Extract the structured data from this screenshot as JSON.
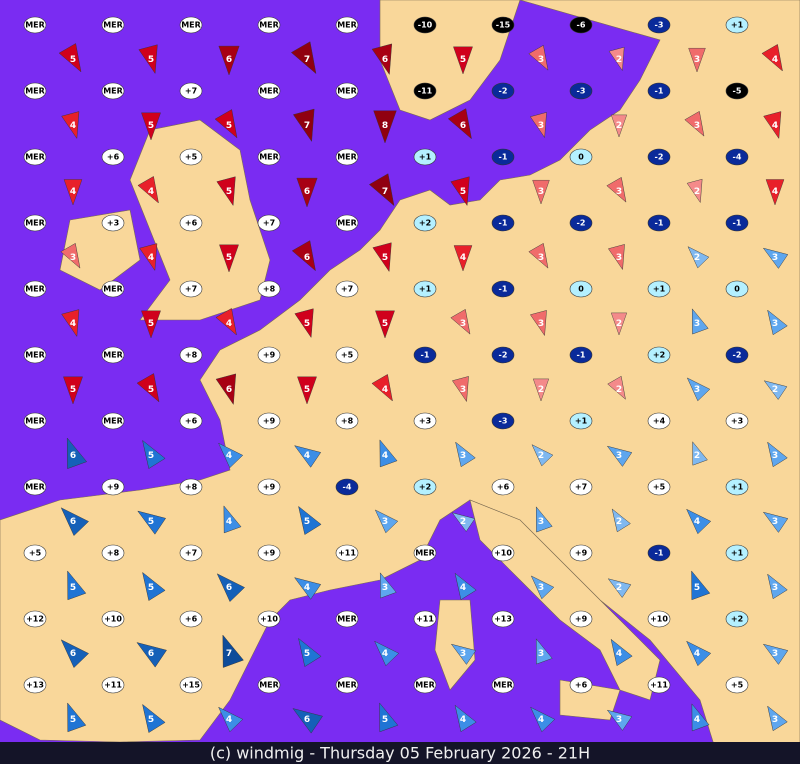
{
  "caption": "(c) windmig - Thursday 05 February 2026 - 21H",
  "temperatures": [
    "MER",
    "MER",
    "MER",
    "MER",
    "MER",
    "-10",
    "-15",
    "-6",
    "-3",
    "+1",
    "MER",
    "MER",
    "+7",
    "MER",
    "MER",
    "-11",
    "-2",
    "-3",
    "-1",
    "-5",
    "MER",
    "+6",
    "+5",
    "MER",
    "MER",
    "+1",
    "-1",
    "0",
    "-2",
    "-4",
    "MER",
    "+3",
    "+6",
    "+7",
    "MER",
    "+2",
    "-1",
    "-2",
    "-1",
    "-1",
    "MER",
    "MER",
    "+7",
    "+8",
    "+7",
    "+1",
    "-1",
    "0",
    "+1",
    "0",
    "MER",
    "MER",
    "+8",
    "+9",
    "+5",
    "-1",
    "-2",
    "-1",
    "+2",
    "-2",
    "MER",
    "MER",
    "+6",
    "+9",
    "+8",
    "+3",
    "-3",
    "+1",
    "+4",
    "+3",
    "MER",
    "+9",
    "+8",
    "+9",
    "-4",
    "+2",
    "+6",
    "+7",
    "+5",
    "+1",
    "+5",
    "+8",
    "+7",
    "+9",
    "+11",
    "MER",
    "+10",
    "+9",
    "-1",
    "+1",
    "+12",
    "+10",
    "+6",
    "+10",
    "MER",
    "+11",
    "+13",
    "+9",
    "+10",
    "+2",
    "+13",
    "+11",
    "+15",
    "MER",
    "MER",
    "MER",
    "MER",
    "+6",
    "+11",
    "+5"
  ],
  "winds": [
    5,
    5,
    6,
    7,
    6,
    5,
    3,
    2,
    3,
    4,
    4,
    5,
    5,
    7,
    8,
    6,
    3,
    2,
    3,
    4,
    4,
    4,
    5,
    6,
    7,
    5,
    3,
    3,
    2,
    4,
    3,
    4,
    5,
    6,
    5,
    4,
    3,
    3,
    2,
    3,
    4,
    5,
    4,
    5,
    5,
    3,
    3,
    2,
    3,
    3,
    5,
    5,
    6,
    5,
    4,
    3,
    2,
    2,
    3,
    2,
    6,
    5,
    4,
    4,
    4,
    3,
    2,
    3,
    2,
    3,
    6,
    5,
    4,
    5,
    3,
    2,
    3,
    2,
    4,
    3,
    5,
    5,
    6,
    4,
    3,
    4,
    3,
    2,
    5,
    3,
    6,
    6,
    7,
    5,
    4,
    3,
    3,
    4,
    4,
    3,
    5,
    5,
    4,
    6,
    5,
    4,
    4,
    3,
    4,
    3
  ]
}
